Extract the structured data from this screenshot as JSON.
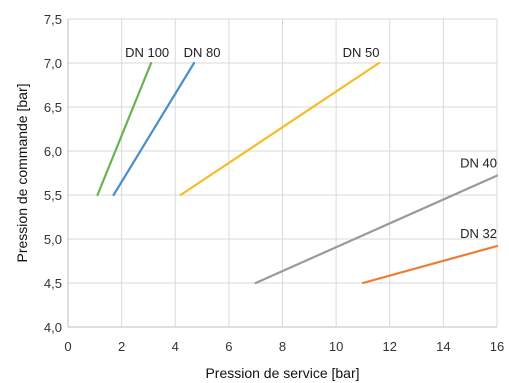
{
  "chart_data": {
    "type": "line",
    "title": "",
    "xlabel": "Pression de service [bar]",
    "ylabel": "Pression de commande [bar]",
    "xlim": [
      0,
      16
    ],
    "ylim": [
      4.0,
      7.5
    ],
    "grid": true,
    "x_ticks": [
      "0",
      "2",
      "4",
      "6",
      "8",
      "10",
      "12",
      "14",
      "16"
    ],
    "x_tick_values": [
      0,
      2,
      4,
      6,
      8,
      10,
      12,
      14,
      16
    ],
    "y_ticks": [
      "4,0",
      "4,5",
      "5,0",
      "5,5",
      "6,0",
      "6,5",
      "7,0",
      "7,5"
    ],
    "y_tick_values": [
      4.0,
      4.5,
      5.0,
      5.5,
      6.0,
      6.5,
      7.0,
      7.5
    ],
    "series": [
      {
        "name": "DN 100",
        "color": "#6ab150",
        "x": [
          1.1,
          3.1
        ],
        "y": [
          5.5,
          7.0
        ]
      },
      {
        "name": "DN 80",
        "color": "#4a8fcc",
        "x": [
          1.7,
          4.7
        ],
        "y": [
          5.5,
          7.0
        ]
      },
      {
        "name": "DN 50",
        "color": "#f5bd1f",
        "x": [
          4.2,
          11.6
        ],
        "y": [
          5.5,
          7.0
        ]
      },
      {
        "name": "DN 40",
        "color": "#9a9a9a",
        "x": [
          7.0,
          16.0
        ],
        "y": [
          4.5,
          5.72
        ]
      },
      {
        "name": "DN 32",
        "color": "#ed7d31",
        "x": [
          11.0,
          16.0
        ],
        "y": [
          4.5,
          4.92
        ]
      }
    ]
  }
}
